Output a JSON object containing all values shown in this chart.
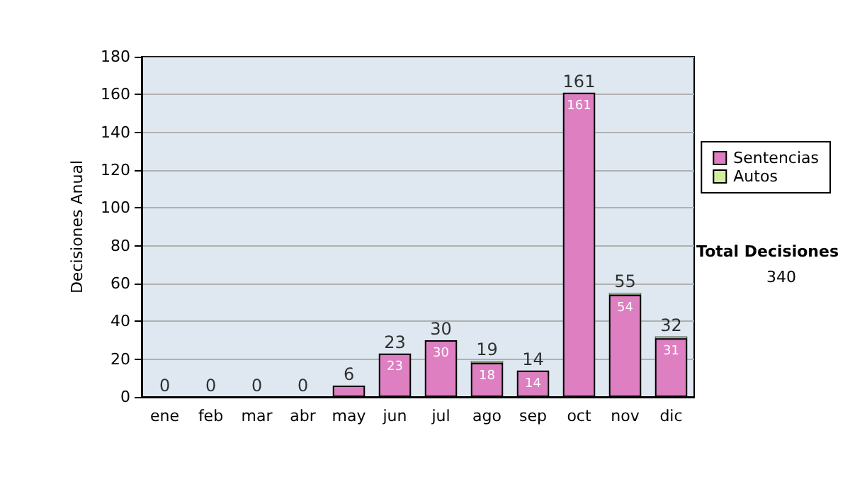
{
  "chart_data": {
    "type": "bar",
    "stacked": true,
    "ylabel": "Decisiones Anual",
    "categories": [
      "ene",
      "feb",
      "mar",
      "abr",
      "may",
      "jun",
      "jul",
      "ago",
      "sep",
      "oct",
      "nov",
      "dic"
    ],
    "series": [
      {
        "name": "Sentencias",
        "color": "#dd7fc0",
        "values": [
          0,
          0,
          0,
          0,
          6,
          23,
          30,
          18,
          14,
          161,
          54,
          31
        ],
        "value_labels": [
          null,
          null,
          null,
          null,
          null,
          "23",
          "30",
          "18",
          "14",
          "161",
          "54",
          "31"
        ]
      },
      {
        "name": "Autos",
        "color": "#d4eda0",
        "values": [
          0,
          0,
          0,
          0,
          0,
          0,
          0,
          1,
          0,
          0,
          1,
          1
        ]
      }
    ],
    "totals": [
      "0",
      "0",
      "0",
      "0",
      "6",
      "23",
      "30",
      "19",
      "14",
      "161",
      "55",
      "32"
    ],
    "ylim": [
      0,
      180
    ],
    "yticks": [
      0,
      20,
      40,
      60,
      80,
      100,
      120,
      140,
      160,
      180
    ],
    "grid": "y",
    "legend": "right",
    "annotations": [
      "Total Decisiones",
      "340"
    ]
  }
}
